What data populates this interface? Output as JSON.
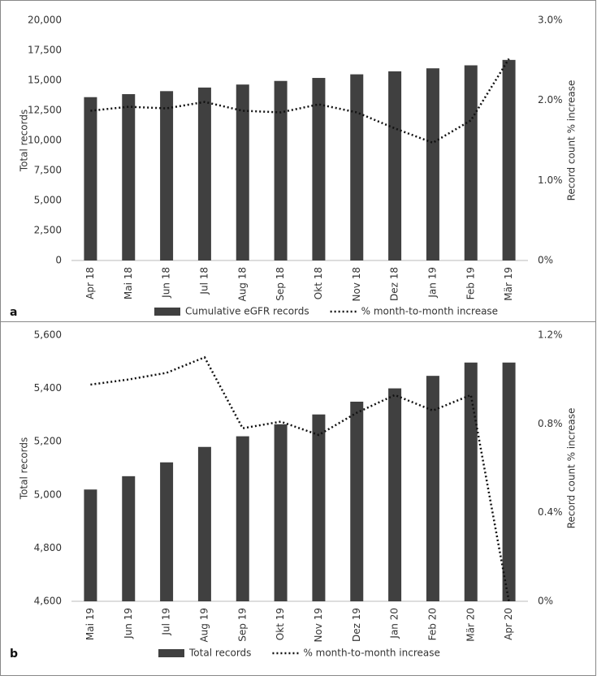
{
  "chart_data": [
    {
      "type": "combo",
      "panel_label": "a",
      "categories": [
        "Apr 18",
        "Mai 18",
        "Jun 18",
        "Jul 18",
        "Aug 18",
        "Sep 18",
        "Okt 18",
        "Nov 18",
        "Dez 18",
        "Jan 19",
        "Feb 19",
        "Mär 19"
      ],
      "y_label": "Total records",
      "y2_label": "Record count % increase",
      "ylim": [
        0,
        20000
      ],
      "yticks": [
        0,
        {
          "value": 2500,
          "label": "2,500"
        },
        {
          "value": 5000,
          "label": "5,000"
        },
        {
          "value": 7500,
          "label": "7,500"
        },
        {
          "value": 10000,
          "label": "10,000"
        },
        {
          "value": 12500,
          "label": "12,500"
        },
        {
          "value": 15000,
          "label": "15,000"
        },
        {
          "value": 17500,
          "label": "17,500"
        },
        {
          "value": 20000,
          "label": "20,000"
        }
      ],
      "y2lim": [
        0,
        3
      ],
      "y2ticks": [
        {
          "value": 0,
          "label": "0%"
        },
        {
          "value": 1,
          "label": "1.0%"
        },
        {
          "value": 2,
          "label": "2.0%"
        },
        {
          "value": 3,
          "label": "3.0%"
        }
      ],
      "series": [
        {
          "name": "Cumulative eGFR records",
          "type": "bar",
          "color": "#404040",
          "values": [
            13600,
            13850,
            14100,
            14400,
            14650,
            14950,
            15200,
            15500,
            15750,
            16000,
            16250,
            16700
          ]
        },
        {
          "name": "% month-to-month increase",
          "type": "line",
          "axis": "y2",
          "color": "#111111",
          "values": [
            1.87,
            1.92,
            1.9,
            1.98,
            1.87,
            1.85,
            1.95,
            1.85,
            1.65,
            1.47,
            1.75,
            2.52
          ]
        }
      ]
    },
    {
      "type": "combo",
      "panel_label": "b",
      "categories": [
        "Mai 19",
        "Jun 19",
        "Jul 19",
        "Aug 19",
        "Sep 19",
        "Okt 19",
        "Nov 19",
        "Dez 19",
        "Jan 20",
        "Feb 20",
        "Mär 20",
        "Apr 20"
      ],
      "y_label": "Total records",
      "y2_label": "Record count % increase",
      "ylim": [
        4600,
        5600
      ],
      "yticks": [
        {
          "value": 4600,
          "label": "4,600"
        },
        {
          "value": 4800,
          "label": "4,800"
        },
        {
          "value": 5000,
          "label": "5,000"
        },
        {
          "value": 5200,
          "label": "5,200"
        },
        {
          "value": 5400,
          "label": "5,400"
        },
        {
          "value": 5600,
          "label": "5,600"
        }
      ],
      "y2lim": [
        0,
        1.2
      ],
      "y2ticks": [
        {
          "value": 0,
          "label": "0%"
        },
        {
          "value": 0.4,
          "label": "0.4%"
        },
        {
          "value": 0.8,
          "label": "0.8%"
        },
        {
          "value": 1.2,
          "label": "1.2%"
        }
      ],
      "series": [
        {
          "name": "Total records",
          "type": "bar",
          "color": "#404040",
          "values": [
            5020,
            5070,
            5122,
            5180,
            5220,
            5265,
            5302,
            5350,
            5400,
            5447,
            5497,
            5497
          ]
        },
        {
          "name": "% month-to-month increase",
          "type": "line",
          "axis": "y2",
          "color": "#111111",
          "values": [
            0.977,
            1.0,
            1.03,
            1.1,
            0.78,
            0.81,
            0.75,
            0.85,
            0.93,
            0.86,
            0.93,
            0.0
          ]
        }
      ]
    }
  ]
}
